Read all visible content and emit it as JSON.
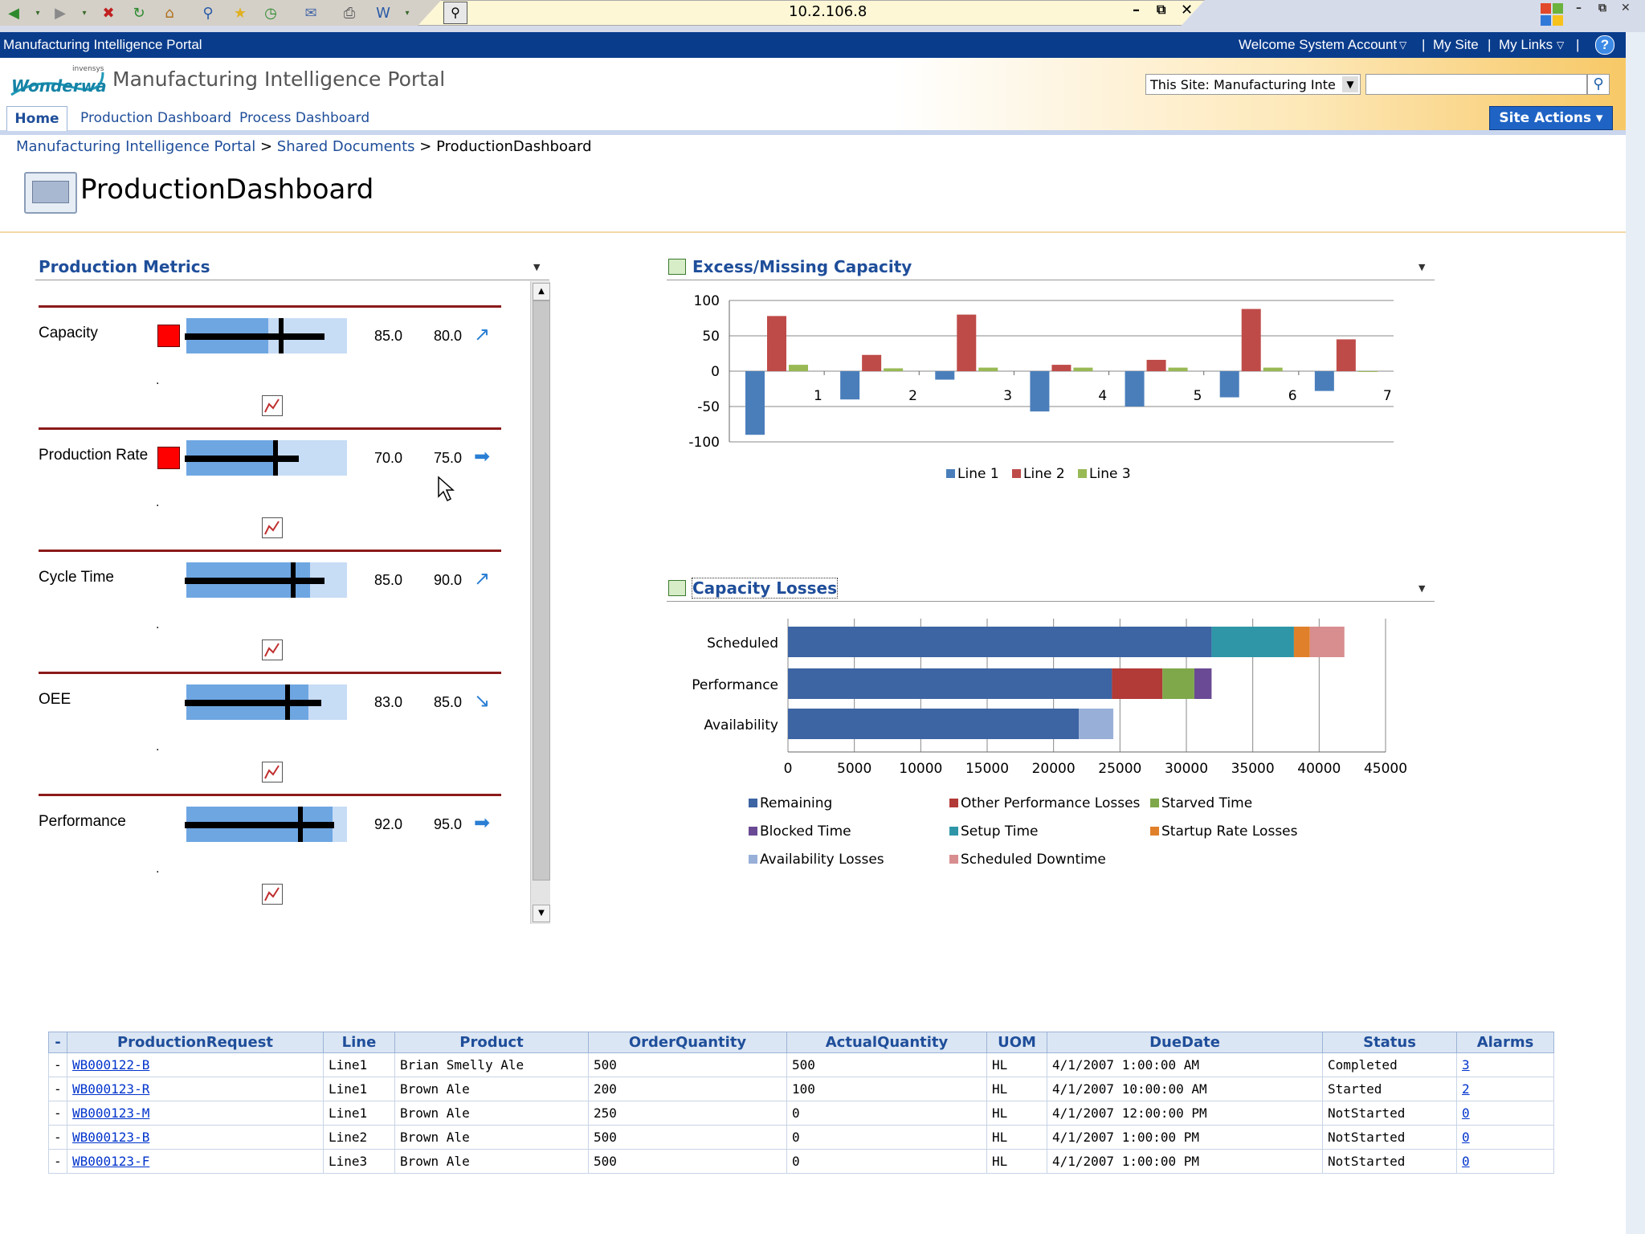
{
  "browser": {
    "address": "10.2.106.8",
    "minimize": "–",
    "restore": "⧉",
    "close": "✕"
  },
  "portal": {
    "site_name": "Manufacturing Intelligence Portal",
    "welcome": "Welcome System Account",
    "my_site": "My Site",
    "my_links": "My Links",
    "title": "Manufacturing Intelligence Portal",
    "logo_text": "Wonderware",
    "logo_brand": "invensys",
    "search_scope": "This Site: Manufacturing Intelli",
    "search_value": "",
    "site_actions": "Site Actions ▾"
  },
  "nav": {
    "tabs": [
      "Home",
      "Production Dashboard",
      "Process Dashboard"
    ]
  },
  "breadcrumb": {
    "items": [
      "Manufacturing Intelligence Portal",
      "Shared Documents",
      "ProductionDashboard"
    ],
    "separator": ">"
  },
  "page": {
    "title": "ProductionDashboard"
  },
  "production_metrics": {
    "title": "Production Metrics",
    "metrics": [
      {
        "name": "Capacity",
        "flag": true,
        "actual": "85.0",
        "target": "80.0",
        "arrow": "↗"
      },
      {
        "name": "Production Rate",
        "flag": true,
        "actual": "70.0",
        "target": "75.0",
        "arrow": "➡"
      },
      {
        "name": "Cycle Time",
        "flag": false,
        "actual": "85.0",
        "target": "90.0",
        "arrow": "↗"
      },
      {
        "name": "OEE",
        "flag": false,
        "actual": "83.0",
        "target": "85.0",
        "arrow": "↘"
      },
      {
        "name": "Performance",
        "flag": false,
        "actual": "92.0",
        "target": "95.0",
        "arrow": "➡"
      }
    ]
  },
  "excess_chart": {
    "title": "Excess/Missing Capacity",
    "yticks": [
      "100",
      "50",
      "0",
      "-50",
      "-100"
    ],
    "legend": [
      "Line 1",
      "Line 2",
      "Line 3"
    ],
    "colors": [
      "#4a7ebb",
      "#be4b48",
      "#98b954"
    ]
  },
  "losses_chart": {
    "title": "Capacity Losses",
    "rows": [
      "Scheduled",
      "Performance",
      "Availability"
    ],
    "xticks": [
      "0",
      "5000",
      "10000",
      "15000",
      "20000",
      "25000",
      "30000",
      "35000",
      "40000",
      "45000"
    ],
    "legend": [
      "Remaining",
      "Other Performance Losses",
      "Starved Time",
      "Blocked Time",
      "Setup Time",
      "Startup Rate Losses",
      "Availability Losses",
      "Scheduled  Downtime"
    ]
  },
  "chart_data": [
    {
      "type": "bar",
      "title": "Excess/Missing Capacity",
      "categories": [
        "1",
        "2",
        "3",
        "4",
        "5",
        "6",
        "7"
      ],
      "ylim": [
        -100,
        100
      ],
      "series": [
        {
          "name": "Line 1",
          "values": [
            -90,
            -40,
            -12,
            -57,
            -50,
            -37,
            -28
          ]
        },
        {
          "name": "Line 2",
          "values": [
            78,
            23,
            80,
            9,
            16,
            88,
            45
          ]
        },
        {
          "name": "Line 3",
          "values": [
            9,
            4,
            5,
            5,
            5,
            5,
            0
          ]
        }
      ]
    },
    {
      "type": "bar",
      "title": "Capacity Losses",
      "orientation": "horizontal",
      "stacked": true,
      "categories": [
        "Scheduled",
        "Performance",
        "Availability"
      ],
      "xlim": [
        0,
        45000
      ],
      "series": [
        {
          "name": "Remaining",
          "color": "#3d64a3",
          "values": [
            31900,
            24400,
            21900
          ]
        },
        {
          "name": "Other Performance Losses",
          "color": "#b23a37",
          "values": [
            0,
            3800,
            0
          ]
        },
        {
          "name": "Starved Time",
          "color": "#7fa84a",
          "values": [
            0,
            2400,
            0
          ]
        },
        {
          "name": "Blocked Time",
          "color": "#6a4a94",
          "values": [
            0,
            1300,
            0
          ]
        },
        {
          "name": "Setup Time",
          "color": "#2f96a8",
          "values": [
            6200,
            0,
            0
          ]
        },
        {
          "name": "Startup Rate Losses",
          "color": "#e0802a",
          "values": [
            1200,
            0,
            0
          ]
        },
        {
          "name": "Availability Losses",
          "color": "#98afd8",
          "values": [
            0,
            0,
            2600
          ]
        },
        {
          "name": "Scheduled  Downtime",
          "color": "#d88d8f",
          "values": [
            2600,
            0,
            0
          ]
        }
      ]
    }
  ],
  "orders": {
    "columns": [
      "-",
      "ProductionRequest",
      "Line",
      "Product",
      "OrderQuantity",
      "ActualQuantity",
      "UOM",
      "DueDate",
      "Status",
      "Alarms"
    ],
    "rows": [
      [
        "-",
        "WB000122-B",
        "Line1",
        "Brian Smelly Ale",
        "500",
        "500",
        "HL",
        "4/1/2007 1:00:00 AM",
        "Completed",
        "3"
      ],
      [
        "-",
        "WB000123-R",
        "Line1",
        "Brown Ale",
        "200",
        "100",
        "HL",
        "4/1/2007 10:00:00 AM",
        "Started",
        "2"
      ],
      [
        "-",
        "WB000123-M",
        "Line1",
        "Brown Ale",
        "250",
        "0",
        "HL",
        "4/1/2007 12:00:00 PM",
        "NotStarted",
        "0"
      ],
      [
        "-",
        "WB000123-B",
        "Line2",
        "Brown Ale",
        "500",
        "0",
        "HL",
        "4/1/2007 1:00:00 PM",
        "NotStarted",
        "0"
      ],
      [
        "-",
        "WB000123-F",
        "Line3",
        "Brown Ale",
        "500",
        "0",
        "HL",
        "4/1/2007 1:00:00 PM",
        "NotStarted",
        "0"
      ]
    ]
  }
}
